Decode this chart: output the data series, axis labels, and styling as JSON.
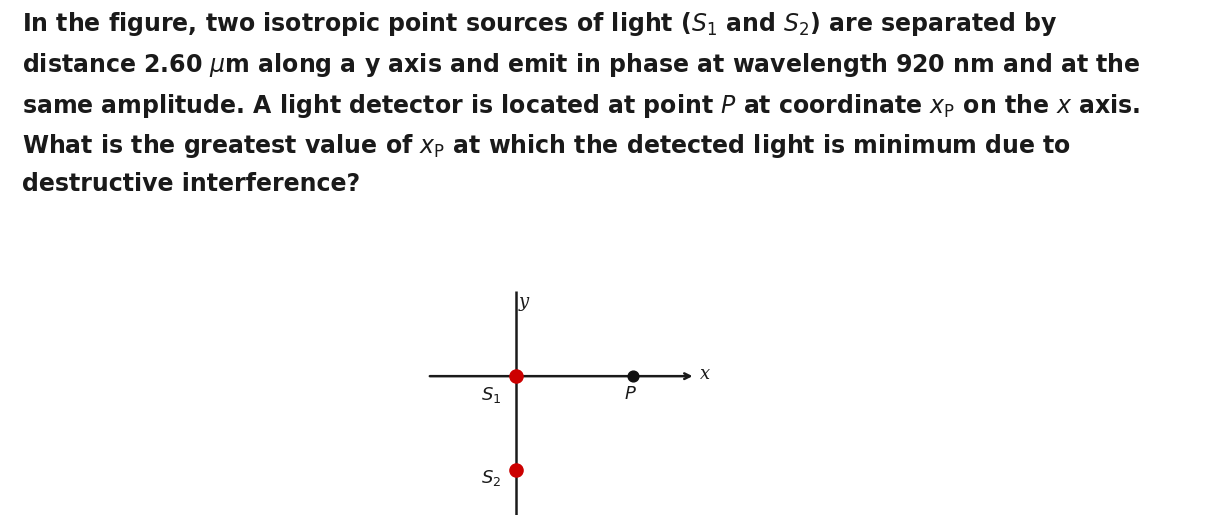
{
  "background_color": "#ffffff",
  "text_color": "#1a1a1a",
  "fig_width": 12.2,
  "fig_height": 5.2,
  "axis_color": "#1a1a1a",
  "s1_color": "#cc0000",
  "s2_color": "#cc0000",
  "p_color": "#111111",
  "font_size_text": 17.0,
  "label_x": "x",
  "label_y": "y",
  "dot_size_s": 90,
  "dot_size_p": 60,
  "text_line1": "In the figure, two isotropic point sources of light (S₁ and S₂) are separated by",
  "text_line2": "distance 2.60 μm along a y axis and emit in phase at wavelength 920 nm and at the",
  "text_line3": "same amplitude. A light detector is located at point P at coordinate xₚ on the x axis.",
  "text_line4": "What is the greatest value of xₚ at which the detected light is minimum due to",
  "text_line5": "destructive interference?"
}
